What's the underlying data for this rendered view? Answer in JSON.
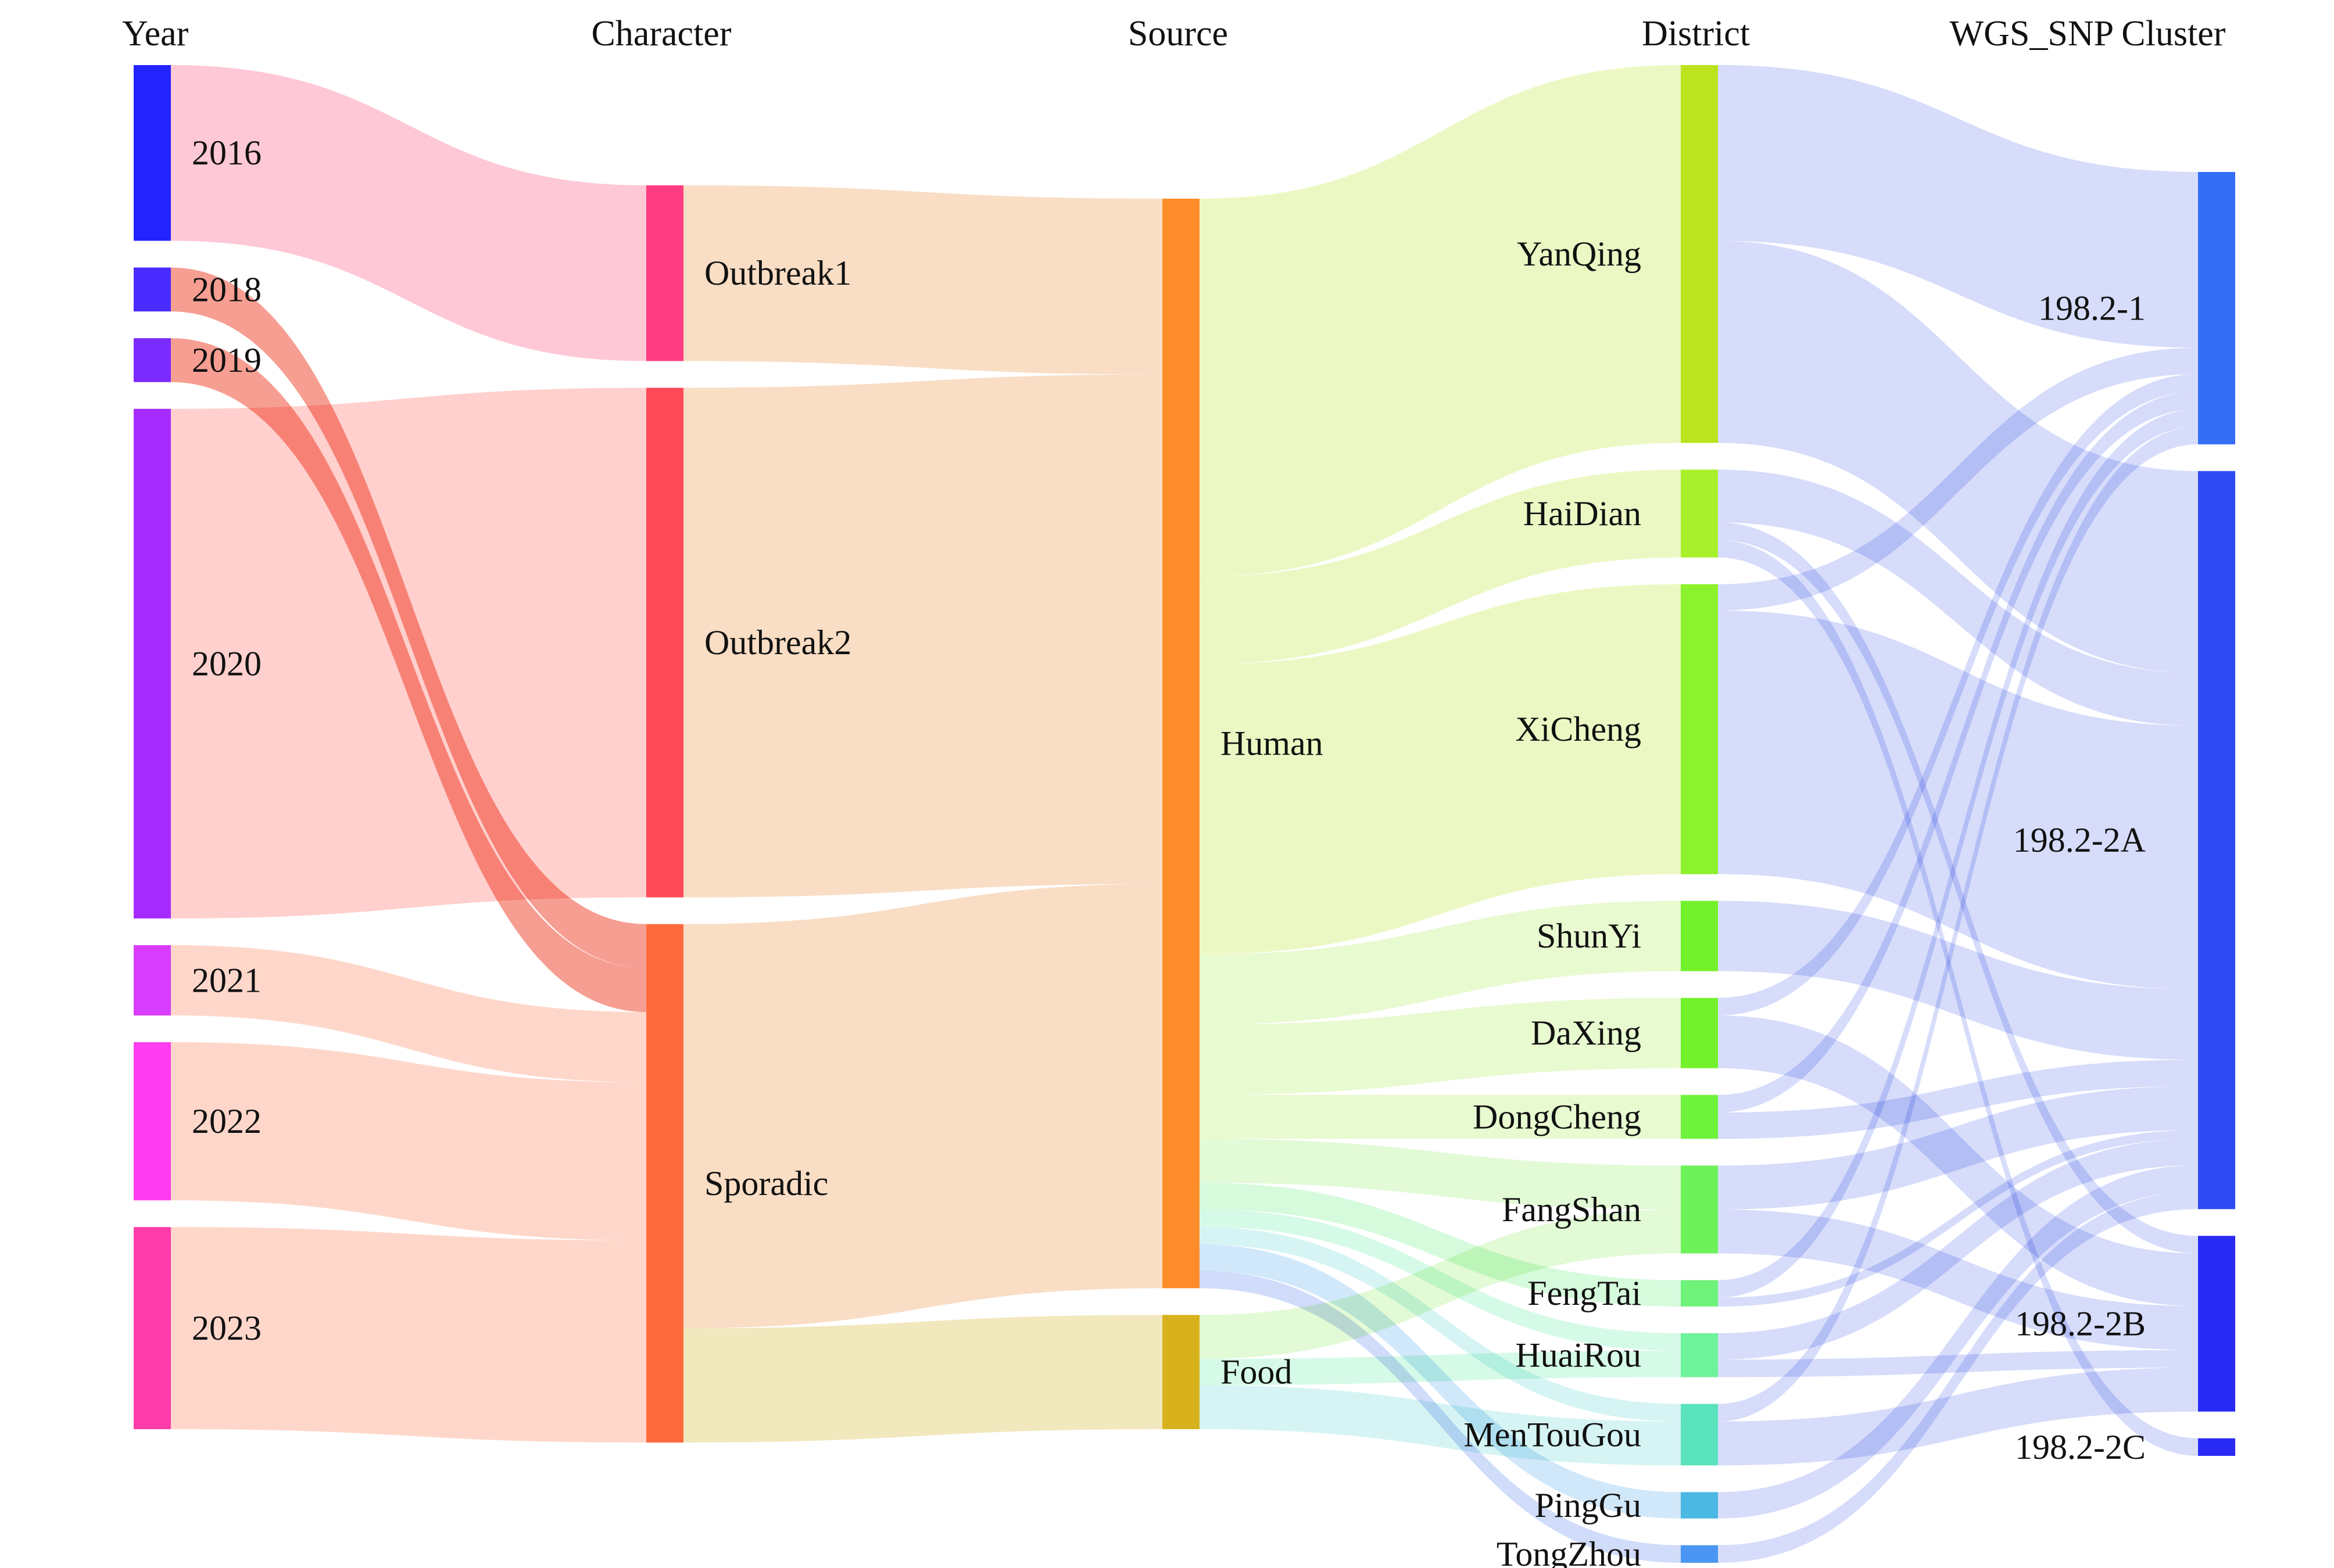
{
  "columns": [
    {
      "id": "year",
      "title": "Year"
    },
    {
      "id": "character",
      "title": "Character"
    },
    {
      "id": "source",
      "title": "Source"
    },
    {
      "id": "district",
      "title": "District"
    },
    {
      "id": "cluster",
      "title": "WGS_SNP Cluster"
    }
  ],
  "nodes": [
    {
      "id": "y2016",
      "label": "2016",
      "column": "year",
      "color": "#2323ff"
    },
    {
      "id": "y2018",
      "label": "2018",
      "column": "year",
      "color": "#4a2bff"
    },
    {
      "id": "y2019",
      "label": "2019",
      "column": "year",
      "color": "#7a2bff"
    },
    {
      "id": "y2020",
      "label": "2020",
      "column": "year",
      "color": "#a52bff"
    },
    {
      "id": "y2021",
      "label": "2021",
      "column": "year",
      "color": "#d83cff"
    },
    {
      "id": "y2022",
      "label": "2022",
      "column": "year",
      "color": "#ff3cf0"
    },
    {
      "id": "y2023",
      "label": "2023",
      "column": "year",
      "color": "#ff3ca8"
    },
    {
      "id": "outbreak1",
      "label": "Outbreak1",
      "column": "character",
      "color": "#ff3c82"
    },
    {
      "id": "outbreak2",
      "label": "Outbreak2",
      "column": "character",
      "color": "#ff4a57"
    },
    {
      "id": "sporadic",
      "label": "Sporadic",
      "column": "character",
      "color": "#ff6a3c"
    },
    {
      "id": "human",
      "label": "Human",
      "column": "source",
      "color": "#ff8c2b"
    },
    {
      "id": "food",
      "label": "Food",
      "column": "source",
      "color": "#d8b21c"
    },
    {
      "id": "yanqing",
      "label": "YanQing",
      "column": "district",
      "color": "#bce31e"
    },
    {
      "id": "haidian",
      "label": "HaiDian",
      "column": "district",
      "color": "#a8f02b"
    },
    {
      "id": "xicheng",
      "label": "XiCheng",
      "column": "district",
      "color": "#8cf22b"
    },
    {
      "id": "shunyi",
      "label": "ShunYi",
      "column": "district",
      "color": "#73f22b"
    },
    {
      "id": "daxing",
      "label": "DaXing",
      "column": "district",
      "color": "#73f22b"
    },
    {
      "id": "dongcheng",
      "label": "DongCheng",
      "column": "district",
      "color": "#6ef23c"
    },
    {
      "id": "fangshan",
      "label": "FangShan",
      "column": "district",
      "color": "#6ef25a"
    },
    {
      "id": "fengtai",
      "label": "FengTai",
      "column": "district",
      "color": "#6ef27a"
    },
    {
      "id": "huairou",
      "label": "HuaiRou",
      "column": "district",
      "color": "#6ef29a"
    },
    {
      "id": "mentougou",
      "label": "MenTouGou",
      "column": "district",
      "color": "#5ae3bc"
    },
    {
      "id": "pinggu",
      "label": "PingGu",
      "column": "district",
      "color": "#4ab8e3"
    },
    {
      "id": "tongzhou",
      "label": "TongZhou",
      "column": "district",
      "color": "#4a96f2"
    },
    {
      "id": "c1",
      "label": "198.2-1",
      "column": "cluster",
      "color": "#336ef5"
    },
    {
      "id": "c2a",
      "label": "198.2-2A",
      "column": "cluster",
      "color": "#2e4af5"
    },
    {
      "id": "c2b",
      "label": "198.2-2B",
      "column": "cluster",
      "color": "#2a2af5"
    },
    {
      "id": "c2c",
      "label": "198.2-2C",
      "column": "cluster",
      "color": "#2a2af5"
    }
  ],
  "links": [
    {
      "source": "y2016",
      "target": "outbreak1",
      "value": 20,
      "color": "#ffb6c8"
    },
    {
      "source": "y2018",
      "target": "sporadic",
      "value": 5,
      "color": "#f47d6e"
    },
    {
      "source": "y2019",
      "target": "sporadic",
      "value": 5,
      "color": "#f47d6e"
    },
    {
      "source": "y2020",
      "target": "outbreak2",
      "value": 58,
      "color": "#ffc0bc"
    },
    {
      "source": "y2021",
      "target": "sporadic",
      "value": 8,
      "color": "#ffcab8"
    },
    {
      "source": "y2022",
      "target": "sporadic",
      "value": 18,
      "color": "#ffcab8"
    },
    {
      "source": "y2023",
      "target": "sporadic",
      "value": 23,
      "color": "#ffcab8"
    },
    {
      "source": "outbreak1",
      "target": "human",
      "value": 20,
      "color": "#f7d2b0"
    },
    {
      "source": "outbreak2",
      "target": "human",
      "value": 58,
      "color": "#f7d2b0"
    },
    {
      "source": "sporadic",
      "target": "human",
      "value": 46,
      "color": "#f7d2b0"
    },
    {
      "source": "sporadic",
      "target": "food",
      "value": 13,
      "color": "#eee0a8"
    },
    {
      "source": "human",
      "target": "yanqing",
      "value": 43,
      "color": "#e6f5b0"
    },
    {
      "source": "human",
      "target": "haidian",
      "value": 10,
      "color": "#e6f5b0"
    },
    {
      "source": "human",
      "target": "xicheng",
      "value": 33,
      "color": "#e6f5b0"
    },
    {
      "source": "human",
      "target": "shunyi",
      "value": 8,
      "color": "#e0f8c0"
    },
    {
      "source": "human",
      "target": "daxing",
      "value": 8,
      "color": "#e0f8c0"
    },
    {
      "source": "human",
      "target": "dongcheng",
      "value": 5,
      "color": "#e0f8c0"
    },
    {
      "source": "human",
      "target": "fangshan",
      "value": 5,
      "color": "#d8f8c8"
    },
    {
      "source": "human",
      "target": "fengtai",
      "value": 3,
      "color": "#c8f8d0"
    },
    {
      "source": "human",
      "target": "huairou",
      "value": 2,
      "color": "#c8f8e0"
    },
    {
      "source": "human",
      "target": "mentougou",
      "value": 2,
      "color": "#c8f0f0"
    },
    {
      "source": "human",
      "target": "pinggu",
      "value": 3,
      "color": "#c0e0f8"
    },
    {
      "source": "human",
      "target": "tongzhou",
      "value": 2,
      "color": "#c0d0f8"
    },
    {
      "source": "food",
      "target": "fangshan",
      "value": 5,
      "color": "#d8f8c8"
    },
    {
      "source": "food",
      "target": "huairou",
      "value": 3,
      "color": "#c8f8e0"
    },
    {
      "source": "food",
      "target": "mentougou",
      "value": 5,
      "color": "#c8f0f0"
    },
    {
      "source": "yanqing",
      "target": "c1",
      "value": 20,
      "color": "#c8d0f8"
    },
    {
      "source": "yanqing",
      "target": "c2a",
      "value": 23,
      "color": "#c8d0f8"
    },
    {
      "source": "haidian",
      "target": "c2a",
      "value": 6,
      "color": "#c8d0f8"
    },
    {
      "source": "haidian",
      "target": "c2b",
      "value": 2,
      "color": "#c8d0f8"
    },
    {
      "source": "haidian",
      "target": "c2c",
      "value": 2,
      "color": "#c8d0f8"
    },
    {
      "source": "xicheng",
      "target": "c2a",
      "value": 30,
      "color": "#c8d0f8"
    },
    {
      "source": "xicheng",
      "target": "c1",
      "value": 3,
      "color": "#c8d0f8"
    },
    {
      "source": "shunyi",
      "target": "c2a",
      "value": 8,
      "color": "#c8d0f8"
    },
    {
      "source": "daxing",
      "target": "c1",
      "value": 2,
      "color": "#c8d0f8"
    },
    {
      "source": "daxing",
      "target": "c2b",
      "value": 6,
      "color": "#c8d0f8"
    },
    {
      "source": "dongcheng",
      "target": "c2a",
      "value": 3,
      "color": "#c8d0f8"
    },
    {
      "source": "dongcheng",
      "target": "c1",
      "value": 2,
      "color": "#c8d0f8"
    },
    {
      "source": "fangshan",
      "target": "c2a",
      "value": 5,
      "color": "#c8d0f8"
    },
    {
      "source": "fangshan",
      "target": "c2b",
      "value": 5,
      "color": "#c8d0f8"
    },
    {
      "source": "fengtai",
      "target": "c1",
      "value": 2,
      "color": "#c8d0f8"
    },
    {
      "source": "fengtai",
      "target": "c2a",
      "value": 1,
      "color": "#c8d0f8"
    },
    {
      "source": "huairou",
      "target": "c2a",
      "value": 3,
      "color": "#c8d0f8"
    },
    {
      "source": "huairou",
      "target": "c2b",
      "value": 2,
      "color": "#c8d0f8"
    },
    {
      "source": "mentougou",
      "target": "c1",
      "value": 2,
      "color": "#c8d0f8"
    },
    {
      "source": "mentougou",
      "target": "c2b",
      "value": 5,
      "color": "#c8d0f8"
    },
    {
      "source": "pinggu",
      "target": "c2a",
      "value": 3,
      "color": "#c8d0f8"
    },
    {
      "source": "tongzhou",
      "target": "c2a",
      "value": 2,
      "color": "#c8d0f8"
    }
  ]
}
